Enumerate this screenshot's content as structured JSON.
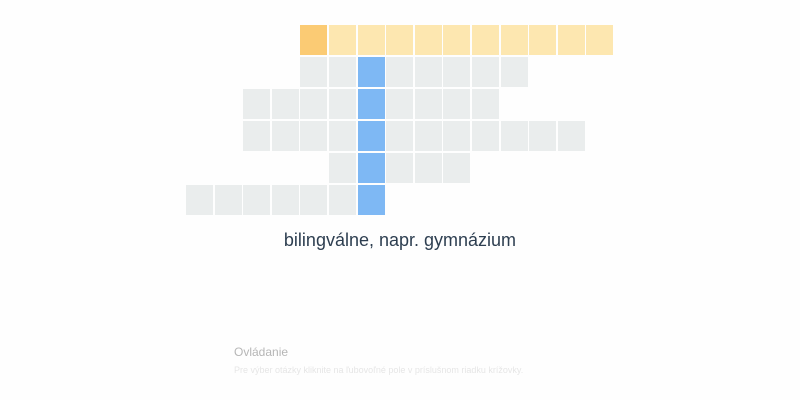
{
  "crossword": {
    "rows": [
      {
        "start_col": 4,
        "length": 11,
        "kind": "highlight",
        "active_index": 0
      },
      {
        "start_col": 4,
        "length": 8,
        "kind": "empty"
      },
      {
        "start_col": 2,
        "length": 9,
        "kind": "empty"
      },
      {
        "start_col": 2,
        "length": 12,
        "kind": "empty"
      },
      {
        "start_col": 5,
        "length": 5,
        "kind": "empty"
      },
      {
        "start_col": 0,
        "length": 7,
        "kind": "empty"
      }
    ],
    "solution_column": 6,
    "solution_rows": [
      1,
      2,
      3,
      4,
      5
    ]
  },
  "clue": {
    "text": "bilingválne, napr. gymnázium"
  },
  "controls": {
    "title": "Ovládanie",
    "text": "Pre výber otázky kliknite na ľubovoľné pole v príslušnom riadku krížovky."
  },
  "colors": {
    "empty": "#eaeded",
    "highlight": "#fde7b0",
    "active": "#fbcb74",
    "column": "#7eb8f4"
  }
}
